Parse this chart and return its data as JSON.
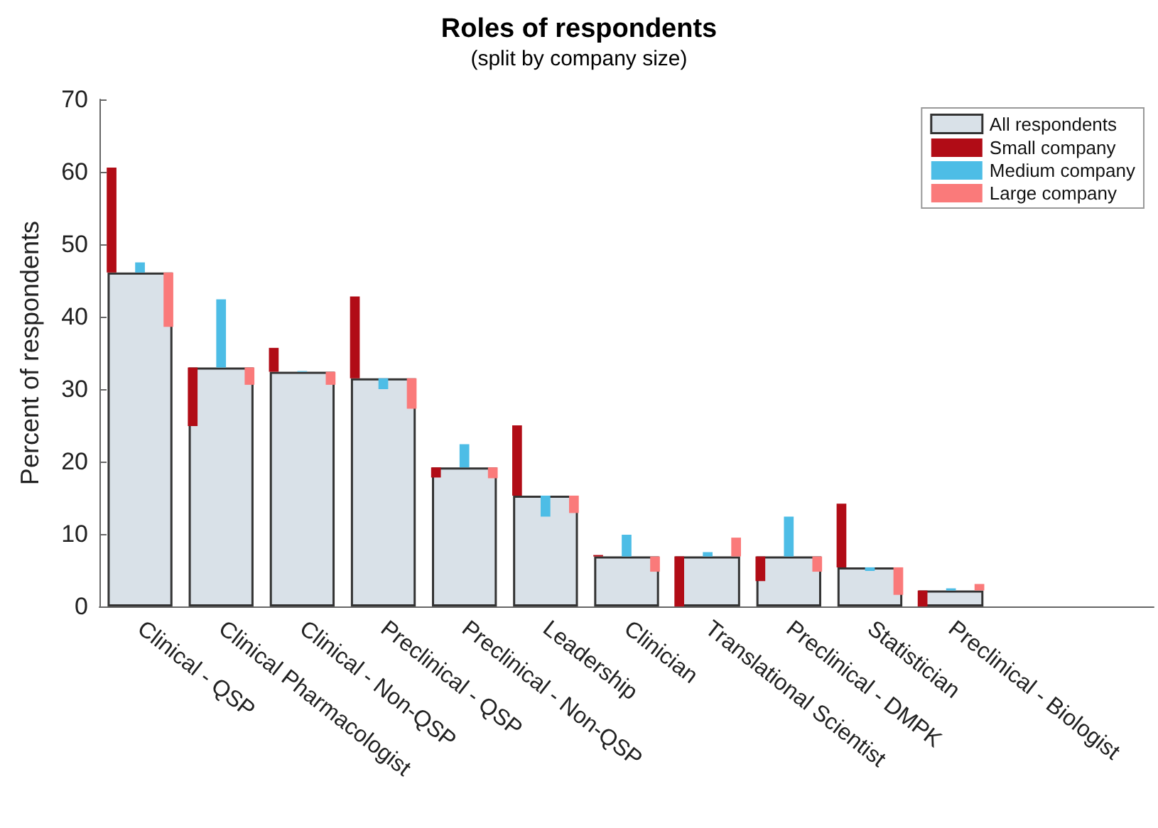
{
  "chart_data": {
    "type": "bar",
    "title": "Roles of respondents",
    "subtitle": "(split by company size)",
    "ylabel": "Percent of respondents",
    "categories": [
      "Clinical - QSP",
      "Clinical Pharmacologist",
      "Clinical - Non-QSP",
      "Preclinical - QSP",
      "Preclinical - Non-QSP",
      "Leadership",
      "Clinician",
      "Translational Scientist",
      "Preclinical - DMPK",
      "Statistician",
      "Preclinical - Biologist",
      null,
      null
    ],
    "series": [
      {
        "name": "All respondents",
        "color": "#d9e1e8",
        "values": [
          46.1,
          33.0,
          32.4,
          31.5,
          19.2,
          15.3,
          6.9,
          6.9,
          6.9,
          5.4,
          2.2,
          null,
          null
        ]
      },
      {
        "name": "Small company",
        "color": "#b10c16",
        "base": [
          46.1,
          33.0,
          32.4,
          31.5,
          19.2,
          15.3,
          6.9,
          6.9,
          6.9,
          5.4,
          2.2,
          null,
          null
        ],
        "values": [
          14.5,
          -8.1,
          3.3,
          11.3,
          -1.4,
          9.7,
          0.2,
          -6.9,
          -3.4,
          8.8,
          -2.2,
          null,
          null
        ]
      },
      {
        "name": "Medium company",
        "color": "#4dbde6",
        "base": [
          46.1,
          33.0,
          32.4,
          31.5,
          19.2,
          15.3,
          6.9,
          6.9,
          6.9,
          5.4,
          2.2,
          null,
          null
        ],
        "values": [
          1.4,
          9.4,
          0.1,
          -1.5,
          3.2,
          -2.9,
          3.0,
          0.6,
          5.5,
          -0.5,
          0.3,
          null,
          null
        ]
      },
      {
        "name": "Large company",
        "color": "#fa7a7a",
        "base": [
          46.1,
          33.0,
          32.4,
          31.5,
          19.2,
          15.3,
          6.9,
          6.9,
          6.9,
          5.4,
          2.2,
          null,
          null
        ],
        "values": [
          -7.5,
          -2.4,
          -1.8,
          -4.2,
          -1.5,
          -2.4,
          -2.1,
          2.6,
          -2.1,
          -3.8,
          0.9,
          null,
          null
        ]
      }
    ],
    "ylim": [
      0,
      70
    ],
    "yticks": [
      0,
      10,
      20,
      30,
      40,
      50,
      60,
      70
    ],
    "legend": "top right"
  }
}
